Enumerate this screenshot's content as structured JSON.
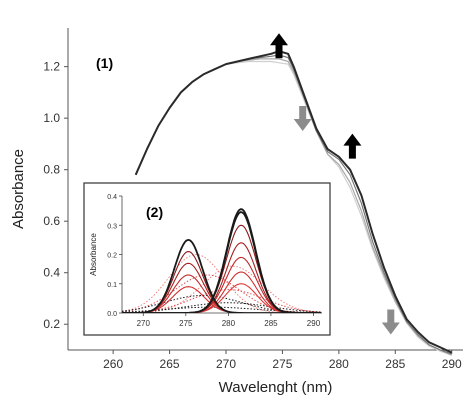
{
  "chart_data": [
    {
      "type": "line",
      "panel_label": "(1)",
      "xlabel": "Wavelenght (nm)",
      "ylabel": "Absorbance",
      "xlim": [
        256,
        291
      ],
      "ylim": [
        0.1,
        1.35
      ],
      "xticks": [
        "260",
        "265",
        "270",
        "275",
        "280",
        "285",
        "290"
      ],
      "yticks": [
        "0.2",
        "0.4",
        "0.6",
        "0.8",
        "1.0",
        "1.2"
      ],
      "grid": false,
      "series": [
        {
          "values_x": [
            262,
            263,
            264,
            265,
            266,
            267,
            268,
            269,
            270,
            271,
            272,
            273,
            274,
            274.7,
            275.5,
            276,
            277,
            278,
            279,
            280,
            281,
            282,
            283,
            284,
            285,
            286,
            287,
            288,
            289,
            290
          ],
          "values_y": [
            0.78,
            0.88,
            0.97,
            1.04,
            1.1,
            1.14,
            1.17,
            1.19,
            1.21,
            1.22,
            1.23,
            1.24,
            1.25,
            1.26,
            1.25,
            1.2,
            1.08,
            0.96,
            0.88,
            0.85,
            0.8,
            0.7,
            0.55,
            0.42,
            0.31,
            0.22,
            0.17,
            0.13,
            0.11,
            0.09
          ]
        },
        {
          "values_x": [
            262,
            263,
            264,
            265,
            266,
            267,
            268,
            269,
            270,
            271,
            272,
            273,
            274,
            274.7,
            275.5,
            276,
            277,
            278,
            279,
            280,
            281,
            282,
            283,
            284,
            285,
            286,
            287,
            288,
            289,
            290
          ],
          "values_y": [
            0.78,
            0.88,
            0.97,
            1.04,
            1.1,
            1.14,
            1.17,
            1.19,
            1.21,
            1.22,
            1.23,
            1.235,
            1.24,
            1.245,
            1.235,
            1.19,
            1.07,
            0.95,
            0.87,
            0.84,
            0.78,
            0.67,
            0.52,
            0.4,
            0.3,
            0.21,
            0.16,
            0.12,
            0.1,
            0.085
          ]
        },
        {
          "values_x": [
            262,
            263,
            264,
            265,
            266,
            267,
            268,
            269,
            270,
            271,
            272,
            273,
            274,
            274.7,
            275.5,
            276,
            277,
            278,
            279,
            280,
            281,
            282,
            283,
            284,
            285,
            286,
            287,
            288,
            289,
            290
          ],
          "values_y": [
            0.78,
            0.88,
            0.97,
            1.04,
            1.1,
            1.14,
            1.17,
            1.19,
            1.21,
            1.22,
            1.225,
            1.23,
            1.23,
            1.23,
            1.22,
            1.18,
            1.07,
            0.95,
            0.86,
            0.82,
            0.75,
            0.64,
            0.5,
            0.39,
            0.29,
            0.21,
            0.155,
            0.12,
            0.1,
            0.08
          ]
        },
        {
          "values_x": [
            262,
            263,
            264,
            265,
            266,
            267,
            268,
            269,
            270,
            271,
            272,
            273,
            274,
            274.7,
            275.5,
            276,
            277,
            278,
            279,
            280,
            281,
            282,
            283,
            284,
            285,
            286,
            287,
            288,
            289,
            290
          ],
          "values_y": [
            0.78,
            0.88,
            0.97,
            1.04,
            1.1,
            1.14,
            1.17,
            1.19,
            1.21,
            1.215,
            1.22,
            1.22,
            1.22,
            1.215,
            1.21,
            1.17,
            1.06,
            0.95,
            0.86,
            0.81,
            0.73,
            0.62,
            0.49,
            0.38,
            0.285,
            0.205,
            0.15,
            0.115,
            0.095,
            0.08
          ]
        }
      ],
      "annotations": [
        {
          "type": "arrow",
          "direction": "up",
          "color": "#000000",
          "x": 274.7,
          "y": 1.33
        },
        {
          "type": "arrow",
          "direction": "down",
          "color": "#8c8c8c",
          "x": 276.8,
          "y": 0.95
        },
        {
          "type": "arrow",
          "direction": "up",
          "color": "#000000",
          "x": 281.2,
          "y": 0.94
        },
        {
          "type": "arrow",
          "direction": "down",
          "color": "#8c8c8c",
          "x": 284.6,
          "y": 0.16
        }
      ]
    },
    {
      "type": "line",
      "panel_label": "(2)",
      "xlabel": "",
      "ylabel": "Absorbance",
      "xlim": [
        267.5,
        291
      ],
      "ylim": [
        0,
        0.4
      ],
      "xticks": [
        "270",
        "275",
        "280",
        "285",
        "290"
      ],
      "yticks": [
        "0.0",
        "0.1",
        "0.2",
        "0.3",
        "0.4"
      ],
      "grid": false,
      "gaussians_solid": [
        {
          "color": "#1a1a1a",
          "center": 275.3,
          "amp": 0.25,
          "sigma": 1.65
        },
        {
          "color": "#1a1a1a",
          "center": 281.5,
          "amp": 0.355,
          "sigma": 1.7
        },
        {
          "color": "#1a1a1a",
          "center": 281.5,
          "amp": 0.345,
          "sigma": 1.7
        },
        {
          "color": "#8b1a1a",
          "center": 281.5,
          "amp": 0.3,
          "sigma": 1.75
        },
        {
          "color": "#a82020",
          "center": 281.5,
          "amp": 0.24,
          "sigma": 1.75
        },
        {
          "color": "#c02a2a",
          "center": 281.5,
          "amp": 0.19,
          "sigma": 1.8
        },
        {
          "color": "#d03030",
          "center": 281.5,
          "amp": 0.14,
          "sigma": 1.8
        },
        {
          "color": "#e03a3a",
          "center": 281.5,
          "amp": 0.1,
          "sigma": 1.85
        },
        {
          "color": "#8b1a1a",
          "center": 275.3,
          "amp": 0.21,
          "sigma": 1.7
        },
        {
          "color": "#a82020",
          "center": 275.3,
          "amp": 0.17,
          "sigma": 1.75
        },
        {
          "color": "#c02a2a",
          "center": 275.3,
          "amp": 0.13,
          "sigma": 1.8
        },
        {
          "color": "#d03030",
          "center": 275.3,
          "amp": 0.09,
          "sigma": 1.85
        }
      ],
      "gaussians_dotted": [
        {
          "color": "#f08080",
          "center": 276.2,
          "amp": 0.2,
          "sigma": 3.2
        },
        {
          "color": "#f08080",
          "center": 280.5,
          "amp": 0.16,
          "sigma": 3.5
        },
        {
          "color": "#e05050",
          "center": 277.5,
          "amp": 0.13,
          "sigma": 3.8
        },
        {
          "color": "#e05050",
          "center": 280.0,
          "amp": 0.08,
          "sigma": 4.2
        },
        {
          "color": "#1a1a1a",
          "center": 277.0,
          "amp": 0.06,
          "sigma": 4.5
        },
        {
          "color": "#1a1a1a",
          "center": 280.0,
          "amp": 0.035,
          "sigma": 5.0
        },
        {
          "color": "#1a1a1a",
          "center": 278.0,
          "amp": 0.02,
          "sigma": 5.5
        }
      ]
    }
  ]
}
